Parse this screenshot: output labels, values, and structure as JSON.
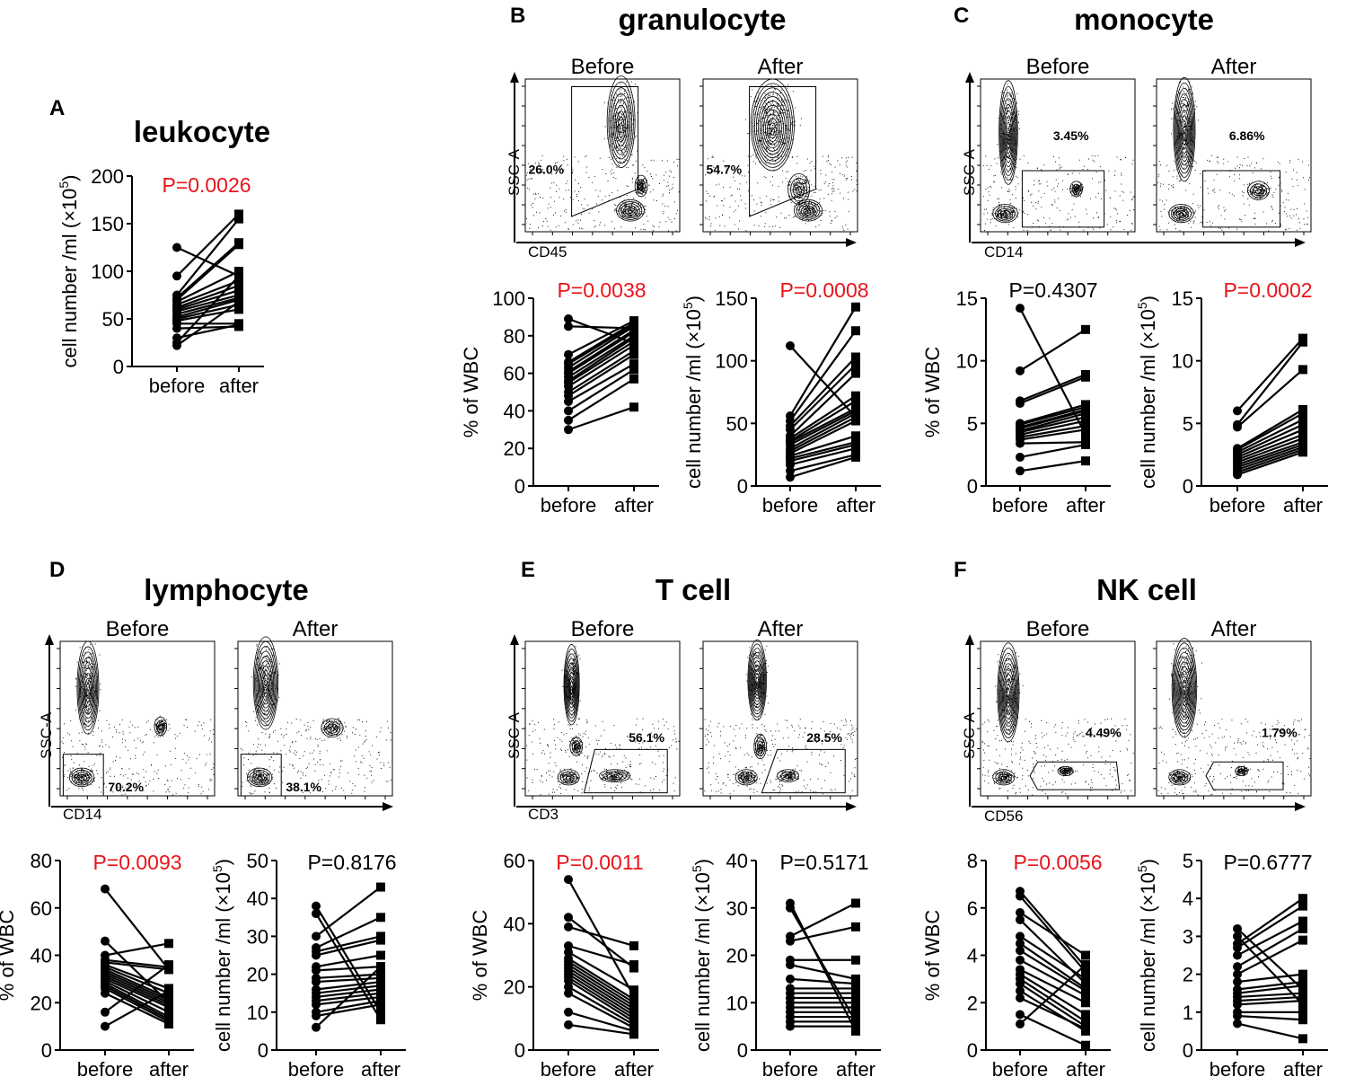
{
  "colors": {
    "significant": "#e8141a",
    "normal": "#000000"
  },
  "plot_labels": {
    "before": "before",
    "after": "after"
  },
  "panels": [
    {
      "letter": "A",
      "title": "leukocyte",
      "flow": null,
      "plots": [
        {
          "kind": "count",
          "ylabel_main": "cell number /ml (×10",
          "ylabel_exp": "5",
          "ylabel_close": ")",
          "p_value": "P=0.0026",
          "significant": true,
          "ticks": [
            "0",
            "50",
            "100",
            "150",
            "200"
          ]
        }
      ]
    },
    {
      "letter": "B",
      "title": "granulocyte",
      "flow": {
        "xlabel": "CD45",
        "ylabel": "SSC-A",
        "before_label": "Before",
        "after_label": "After",
        "gate_before": "26.0%",
        "gate_after": "54.7%"
      },
      "plots": [
        {
          "kind": "percent",
          "ylabel": "% of WBC",
          "p_value": "P=0.0038",
          "significant": true,
          "ticks": [
            "0",
            "20",
            "40",
            "60",
            "80",
            "100"
          ]
        },
        {
          "kind": "count",
          "ylabel_main": "cell number /ml (×10",
          "ylabel_exp": "5",
          "ylabel_close": ")",
          "p_value": "P=0.0008",
          "significant": true,
          "ticks": [
            "0",
            "50",
            "100",
            "150"
          ]
        }
      ]
    },
    {
      "letter": "C",
      "title": "monocyte",
      "flow": {
        "xlabel": "CD14",
        "ylabel": "SSC-A",
        "before_label": "Before",
        "after_label": "After",
        "gate_before": "3.45%",
        "gate_after": "6.86%"
      },
      "plots": [
        {
          "kind": "percent",
          "ylabel": "% of WBC",
          "p_value": "P=0.4307",
          "significant": false,
          "ticks": [
            "0",
            "5",
            "10",
            "15"
          ]
        },
        {
          "kind": "count",
          "ylabel_main": "cell number /ml (×10",
          "ylabel_exp": "5",
          "ylabel_close": ")",
          "p_value": "P=0.0002",
          "significant": true,
          "ticks": [
            "0",
            "5",
            "10",
            "15"
          ]
        }
      ]
    },
    {
      "letter": "D",
      "title": "lymphocyte",
      "flow": {
        "xlabel": "CD14",
        "ylabel": "SSC-A",
        "before_label": "Before",
        "after_label": "After",
        "gate_before": "70.2%",
        "gate_after": "38.1%"
      },
      "plots": [
        {
          "kind": "percent",
          "ylabel": "% of WBC",
          "p_value": "P=0.0093",
          "significant": true,
          "ticks": [
            "0",
            "20",
            "40",
            "60",
            "80"
          ]
        },
        {
          "kind": "count",
          "ylabel_main": "cell number /ml (×10",
          "ylabel_exp": "5",
          "ylabel_close": ")",
          "p_value": "P=0.8176",
          "significant": false,
          "ticks": [
            "0",
            "10",
            "20",
            "30",
            "40",
            "50"
          ]
        }
      ]
    },
    {
      "letter": "E",
      "title": "T cell",
      "flow": {
        "xlabel": "CD3",
        "ylabel": "SSC-A",
        "before_label": "Before",
        "after_label": "After",
        "gate_before": "56.1%",
        "gate_after": "28.5%"
      },
      "plots": [
        {
          "kind": "percent",
          "ylabel": "% of WBC",
          "p_value": "P=0.0011",
          "significant": true,
          "ticks": [
            "0",
            "20",
            "40",
            "60"
          ]
        },
        {
          "kind": "count",
          "ylabel_main": "cell number /ml (×10",
          "ylabel_exp": "5",
          "ylabel_close": ")",
          "p_value": "P=0.5171",
          "significant": false,
          "ticks": [
            "0",
            "10",
            "20",
            "30",
            "40"
          ]
        }
      ]
    },
    {
      "letter": "F",
      "title": "NK cell",
      "flow": {
        "xlabel": "CD56",
        "ylabel": "SSC-A",
        "before_label": "Before",
        "after_label": "After",
        "gate_before": "4.49%",
        "gate_after": "1.79%"
      },
      "plots": [
        {
          "kind": "percent",
          "ylabel": "% of WBC",
          "p_value": "P=0.0056",
          "significant": true,
          "ticks": [
            "0",
            "2",
            "4",
            "6",
            "8"
          ]
        },
        {
          "kind": "count",
          "ylabel_main": "cell number /ml (×10",
          "ylabel_exp": "5",
          "ylabel_close": ")",
          "p_value": "P=0.6777",
          "significant": false,
          "ticks": [
            "0",
            "1",
            "2",
            "3",
            "4",
            "5"
          ]
        }
      ]
    }
  ],
  "chart_data": [
    {
      "type": "scatter",
      "title": "leukocyte (A)",
      "xlabel": "",
      "ylabel": "cell number /ml (×10^5)",
      "categories": [
        "before",
        "after"
      ],
      "ylim": [
        0,
        200
      ],
      "pairs": [
        [
          125,
          95
        ],
        [
          95,
          160
        ],
        [
          75,
          155
        ],
        [
          72,
          130
        ],
        [
          70,
          128
        ],
        [
          68,
          100
        ],
        [
          65,
          90
        ],
        [
          62,
          85
        ],
        [
          60,
          80
        ],
        [
          58,
          75
        ],
        [
          55,
          72
        ],
        [
          52,
          70
        ],
        [
          50,
          65
        ],
        [
          48,
          60
        ],
        [
          45,
          45
        ],
        [
          40,
          42
        ],
        [
          30,
          44
        ],
        [
          25,
          95
        ],
        [
          22,
          68
        ]
      ]
    },
    {
      "type": "scatter",
      "title": "granulocyte % of WBC (B)",
      "ylabel": "% of WBC",
      "categories": [
        "before",
        "after"
      ],
      "ylim": [
        0,
        100
      ],
      "pairs": [
        [
          89,
          76
        ],
        [
          85,
          84
        ],
        [
          70,
          88
        ],
        [
          66,
          87
        ],
        [
          65,
          86
        ],
        [
          63,
          85
        ],
        [
          61,
          83
        ],
        [
          60,
          82
        ],
        [
          58,
          80
        ],
        [
          56,
          79
        ],
        [
          55,
          77
        ],
        [
          53,
          75
        ],
        [
          50,
          72
        ],
        [
          48,
          70
        ],
        [
          45,
          65
        ],
        [
          40,
          62
        ],
        [
          35,
          57
        ],
        [
          30,
          42
        ]
      ]
    },
    {
      "type": "scatter",
      "title": "granulocyte cell number (B)",
      "ylabel": "cell number /ml (×10^5)",
      "categories": [
        "before",
        "after"
      ],
      "ylim": [
        0,
        150
      ],
      "pairs": [
        [
          112,
          55
        ],
        [
          56,
          143
        ],
        [
          52,
          124
        ],
        [
          48,
          103
        ],
        [
          45,
          97
        ],
        [
          40,
          90
        ],
        [
          38,
          72
        ],
        [
          36,
          68
        ],
        [
          35,
          62
        ],
        [
          33,
          60
        ],
        [
          30,
          58
        ],
        [
          28,
          55
        ],
        [
          26,
          52
        ],
        [
          24,
          40
        ],
        [
          22,
          35
        ],
        [
          20,
          33
        ],
        [
          17,
          30
        ],
        [
          12,
          25
        ],
        [
          7,
          23
        ]
      ]
    },
    {
      "type": "scatter",
      "title": "monocyte % of WBC (C)",
      "ylabel": "% of WBC",
      "categories": [
        "before",
        "after"
      ],
      "ylim": [
        0,
        15
      ],
      "pairs": [
        [
          14.2,
          4.1
        ],
        [
          9.2,
          12.5
        ],
        [
          6.8,
          8.9
        ],
        [
          6.6,
          8.7
        ],
        [
          5.0,
          6.5
        ],
        [
          4.9,
          6.3
        ],
        [
          4.7,
          6.1
        ],
        [
          4.6,
          6.0
        ],
        [
          4.4,
          5.8
        ],
        [
          4.3,
          5.5
        ],
        [
          4.1,
          5.2
        ],
        [
          3.9,
          4.8
        ],
        [
          3.7,
          4.5
        ],
        [
          3.4,
          3.5
        ],
        [
          2.3,
          3.3
        ],
        [
          1.2,
          2.0
        ]
      ]
    },
    {
      "type": "scatter",
      "title": "monocyte cell number (C)",
      "ylabel": "cell number /ml (×10^5)",
      "categories": [
        "before",
        "after"
      ],
      "ylim": [
        0,
        15
      ],
      "pairs": [
        [
          6.0,
          11.8
        ],
        [
          4.9,
          11.5
        ],
        [
          4.7,
          9.3
        ],
        [
          3.0,
          6.1
        ],
        [
          2.9,
          5.8
        ],
        [
          2.7,
          5.3
        ],
        [
          2.5,
          4.9
        ],
        [
          2.3,
          4.5
        ],
        [
          2.1,
          4.1
        ],
        [
          1.9,
          3.8
        ],
        [
          1.7,
          3.5
        ],
        [
          1.5,
          3.3
        ],
        [
          1.3,
          3.1
        ],
        [
          1.1,
          2.9
        ],
        [
          0.9,
          2.7
        ]
      ]
    },
    {
      "type": "scatter",
      "title": "lymphocyte % of WBC (D)",
      "ylabel": "% of WBC",
      "categories": [
        "before",
        "after"
      ],
      "ylim": [
        0,
        80
      ],
      "pairs": [
        [
          68,
          34
        ],
        [
          46,
          20
        ],
        [
          40,
          45
        ],
        [
          38,
          35
        ],
        [
          37,
          34
        ],
        [
          36,
          26
        ],
        [
          35,
          24
        ],
        [
          34,
          22
        ],
        [
          33,
          21
        ],
        [
          32,
          20
        ],
        [
          31,
          19
        ],
        [
          30,
          18
        ],
        [
          29,
          16
        ],
        [
          28,
          14
        ],
        [
          27,
          13
        ],
        [
          26,
          12
        ],
        [
          24,
          11
        ],
        [
          16,
          36
        ],
        [
          10,
          25
        ]
      ]
    },
    {
      "type": "scatter",
      "title": "lymphocyte cell number (D)",
      "ylabel": "cell number /ml (×10^5)",
      "categories": [
        "before",
        "after"
      ],
      "ylim": [
        0,
        50
      ],
      "pairs": [
        [
          38,
          10
        ],
        [
          36,
          8
        ],
        [
          30,
          43
        ],
        [
          27,
          35
        ],
        [
          26,
          30
        ],
        [
          25,
          29
        ],
        [
          22,
          25
        ],
        [
          21,
          22
        ],
        [
          19,
          20
        ],
        [
          18,
          19
        ],
        [
          16,
          18
        ],
        [
          15,
          17
        ],
        [
          14,
          16
        ],
        [
          13,
          15
        ],
        [
          12,
          14
        ],
        [
          10,
          13
        ],
        [
          9,
          12
        ],
        [
          6,
          22
        ]
      ]
    },
    {
      "type": "scatter",
      "title": "T cell % of WBC (E)",
      "ylabel": "% of WBC",
      "categories": [
        "before",
        "after"
      ],
      "ylim": [
        0,
        60
      ],
      "pairs": [
        [
          54,
          17
        ],
        [
          42,
          26
        ],
        [
          39,
          33
        ],
        [
          33,
          27
        ],
        [
          31,
          19
        ],
        [
          29,
          16
        ],
        [
          28,
          15
        ],
        [
          27,
          14
        ],
        [
          26,
          13
        ],
        [
          25,
          12
        ],
        [
          24,
          11
        ],
        [
          23,
          10
        ],
        [
          22,
          9
        ],
        [
          20,
          8
        ],
        [
          18,
          7
        ],
        [
          12,
          6
        ],
        [
          8,
          5
        ]
      ]
    },
    {
      "type": "scatter",
      "title": "T cell cell number (E)",
      "ylabel": "cell number /ml (×10^5)",
      "categories": [
        "before",
        "after"
      ],
      "ylim": [
        0,
        40
      ],
      "pairs": [
        [
          31,
          4
        ],
        [
          30,
          6
        ],
        [
          24,
          31
        ],
        [
          23,
          26
        ],
        [
          19,
          19
        ],
        [
          18,
          15
        ],
        [
          15,
          14
        ],
        [
          13,
          13
        ],
        [
          12,
          12
        ],
        [
          11,
          11
        ],
        [
          10,
          10
        ],
        [
          9,
          9
        ],
        [
          8,
          8
        ],
        [
          7,
          7
        ],
        [
          6,
          6
        ],
        [
          5,
          5
        ]
      ]
    },
    {
      "type": "scatter",
      "title": "NK cell % of WBC (F)",
      "ylabel": "% of WBC",
      "categories": [
        "before",
        "after"
      ],
      "ylim": [
        0,
        8
      ],
      "pairs": [
        [
          6.7,
          3.5
        ],
        [
          6.5,
          3.3
        ],
        [
          5.8,
          4.0
        ],
        [
          5.5,
          2.8
        ],
        [
          4.8,
          3.0
        ],
        [
          4.5,
          2.6
        ],
        [
          4.2,
          2.5
        ],
        [
          3.8,
          2.3
        ],
        [
          3.4,
          2.0
        ],
        [
          3.2,
          1.5
        ],
        [
          3.0,
          1.2
        ],
        [
          2.8,
          1.0
        ],
        [
          2.5,
          0.8
        ],
        [
          2.2,
          0.9
        ],
        [
          1.5,
          0.2
        ],
        [
          1.1,
          3.6
        ]
      ]
    },
    {
      "type": "scatter",
      "title": "NK cell cell number (F)",
      "ylabel": "cell number /ml (×10^5)",
      "categories": [
        "before",
        "after"
      ],
      "ylim": [
        0,
        5
      ],
      "pairs": [
        [
          3.2,
          1.6
        ],
        [
          3.0,
          1.2
        ],
        [
          2.8,
          4.0
        ],
        [
          2.7,
          3.8
        ],
        [
          2.5,
          3.4
        ],
        [
          2.2,
          3.2
        ],
        [
          2.0,
          2.9
        ],
        [
          1.8,
          2.0
        ],
        [
          1.6,
          1.8
        ],
        [
          1.5,
          1.7
        ],
        [
          1.4,
          1.5
        ],
        [
          1.3,
          1.4
        ],
        [
          1.2,
          1.3
        ],
        [
          1.0,
          1.0
        ],
        [
          0.9,
          0.8
        ],
        [
          0.7,
          0.3
        ]
      ]
    }
  ]
}
